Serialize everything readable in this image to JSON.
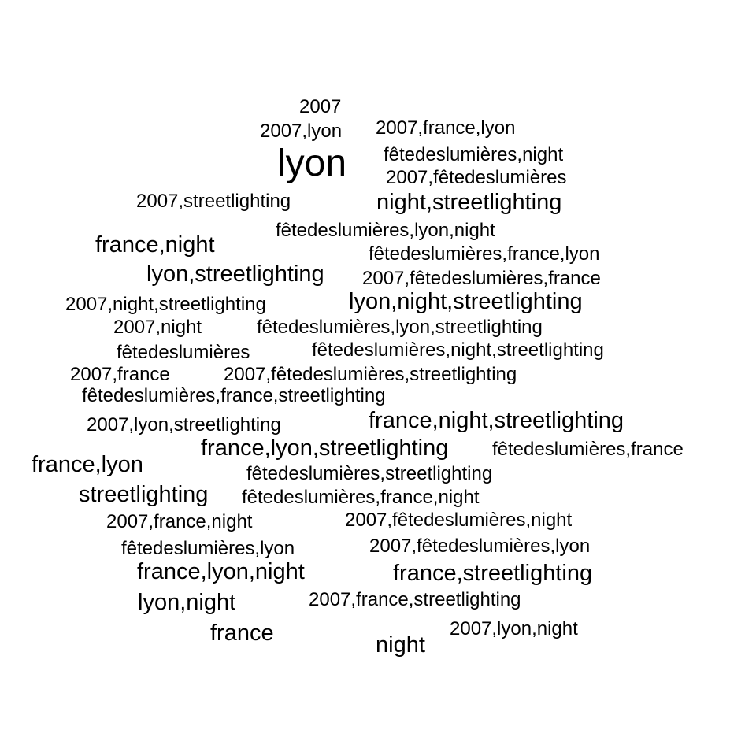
{
  "colors": {
    "background": "#ffffff",
    "text": "#000000"
  },
  "words": [
    "2007",
    "2007,lyon",
    "2007,france,lyon",
    "lyon",
    "fêtedeslumières,night",
    "2007,fêtedeslumières",
    "2007,streetlighting",
    "night,streetlighting",
    "fêtedeslumières,lyon,night",
    "france,night",
    "fêtedeslumières,france,lyon",
    "lyon,streetlighting",
    "2007,fêtedeslumières,france",
    "2007,night,streetlighting",
    "lyon,night,streetlighting",
    "2007,night",
    "fêtedeslumières,lyon,streetlighting",
    "fêtedeslumières",
    "fêtedeslumières,night,streetlighting",
    "2007,france",
    "2007,fêtedeslumières,streetlighting",
    "fêtedeslumières,france,streetlighting",
    "2007,lyon,streetlighting",
    "france,night,streetlighting",
    "france,lyon,streetlighting",
    "fêtedeslumières,france",
    "france,lyon",
    "fêtedeslumières,streetlighting",
    "streetlighting",
    "fêtedeslumières,france,night",
    "2007,france,night",
    "2007,fêtedeslumières,night",
    "fêtedeslumières,lyon",
    "2007,fêtedeslumières,lyon",
    "france,lyon,night",
    "france,streetlighting",
    "lyon,night",
    "2007,france,streetlighting",
    "france",
    "2007,lyon,night",
    "night"
  ]
}
